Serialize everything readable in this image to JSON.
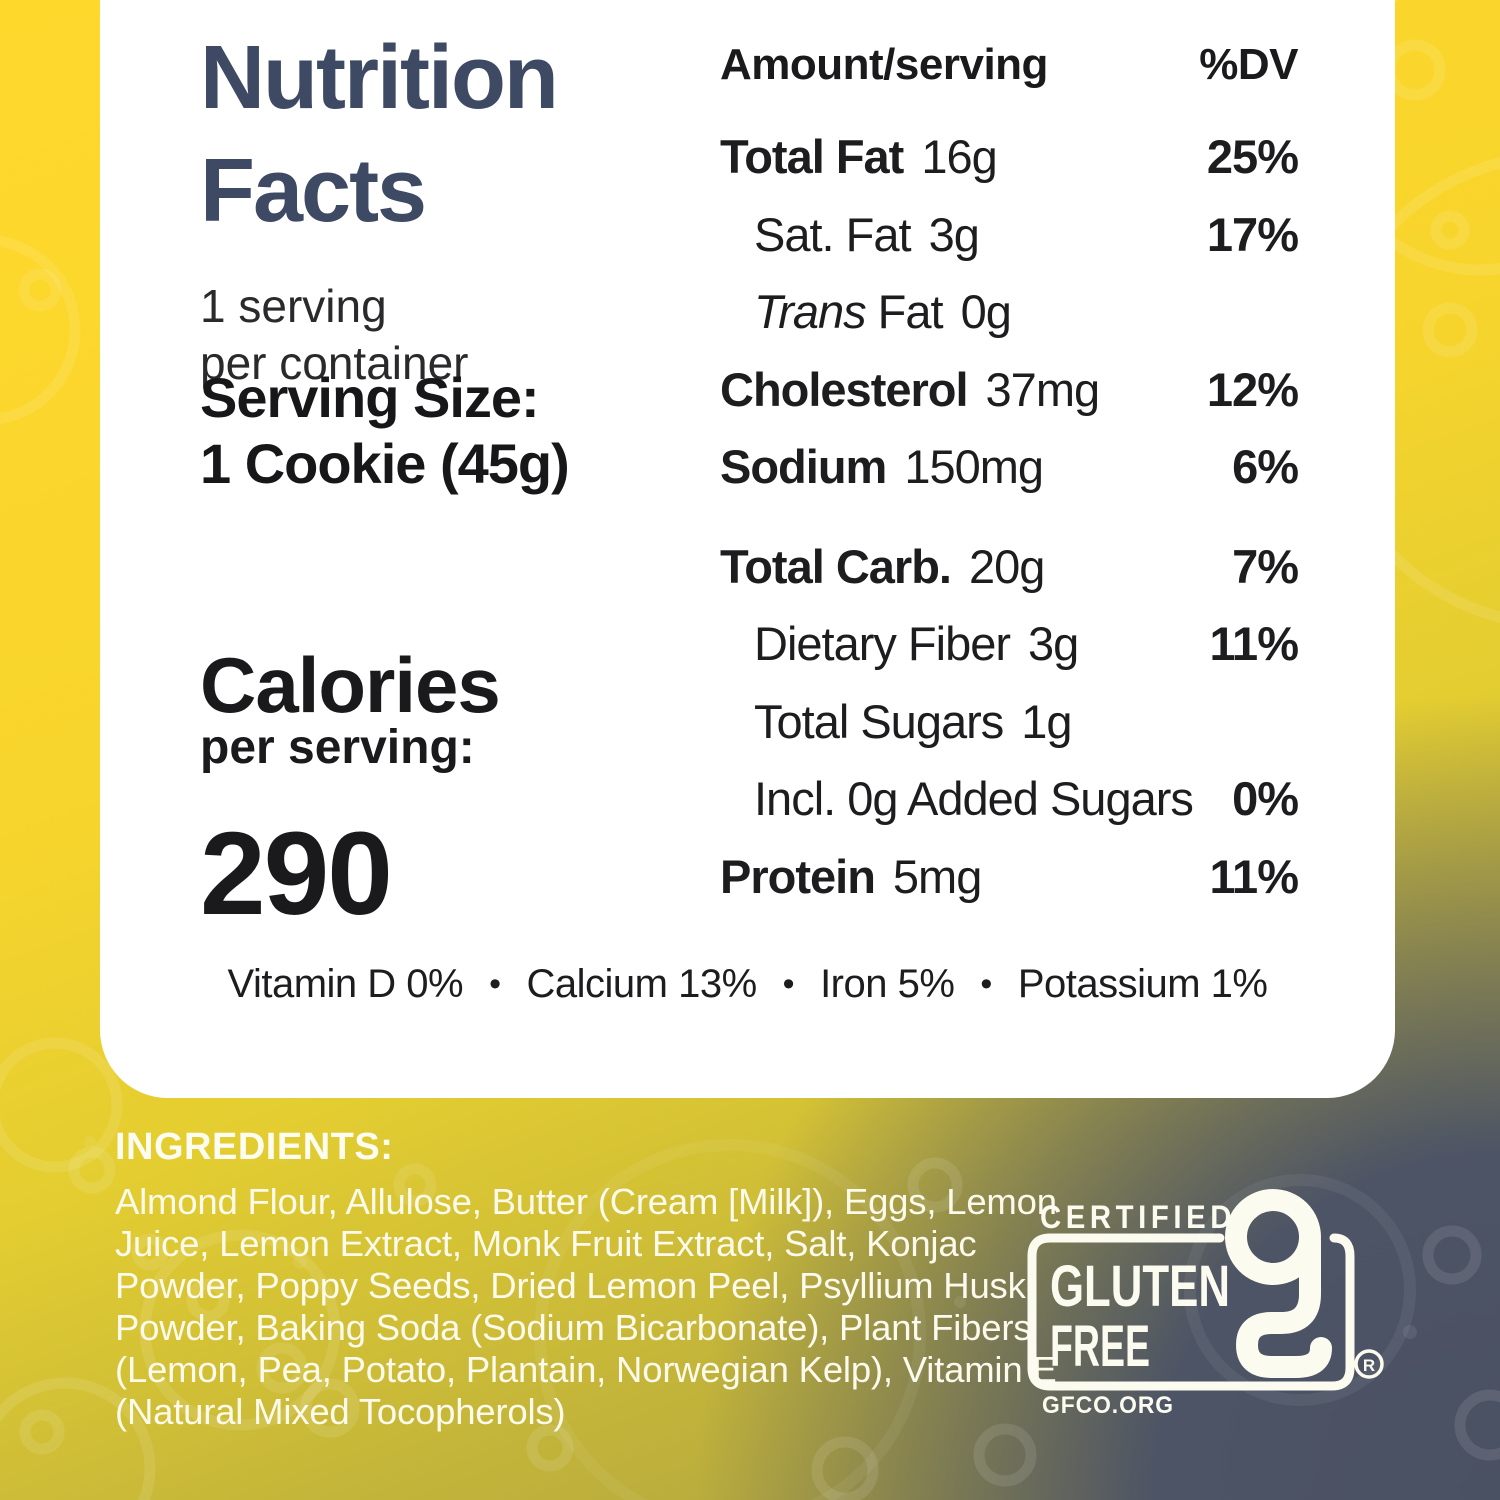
{
  "colors": {
    "bg_yellow": "#FFD82C",
    "bg_olive": "#A89C42",
    "bg_slate": "#4C5364",
    "card_bg": "#FFFFFF",
    "title_blue": "#3E4A63",
    "dark_text": "#1A1A1C",
    "light_text": "#FBFAEC"
  },
  "nutrition_panel": {
    "title_line1": "Nutrition",
    "title_line2": "Facts",
    "servings_line1": "1 serving",
    "servings_line2": "per container",
    "serving_size_line1": "Serving Size:",
    "serving_size_line2": "1 Cookie (45g)",
    "calories_label": "Calories",
    "calories_sublabel": "per serving:",
    "calories_value": "290",
    "table_header": {
      "amount": "Amount/serving",
      "dv": "%DV"
    },
    "rows": [
      {
        "label": "Total Fat",
        "amount": "16g",
        "dv": "25%",
        "bold": true,
        "indent": false,
        "gap_before": false,
        "italic_label": false
      },
      {
        "label": "Sat. Fat",
        "amount": "3g",
        "dv": "17%",
        "bold": false,
        "indent": true,
        "gap_before": false,
        "italic_label": false
      },
      {
        "label": "Trans",
        "label2": "Fat",
        "amount": "0g",
        "dv": "",
        "bold": false,
        "indent": true,
        "gap_before": false,
        "italic_label": true
      },
      {
        "label": "Cholesterol",
        "amount": "37mg",
        "dv": "12%",
        "bold": true,
        "indent": false,
        "gap_before": false,
        "italic_label": false
      },
      {
        "label": "Sodium",
        "amount": "150mg",
        "dv": "6%",
        "bold": true,
        "indent": false,
        "gap_before": false,
        "italic_label": false
      },
      {
        "label": "Total Carb.",
        "amount": "20g",
        "dv": "7%",
        "bold": true,
        "indent": false,
        "gap_before": true,
        "italic_label": false
      },
      {
        "label": "Dietary Fiber",
        "amount": "3g",
        "dv": "11%",
        "bold": false,
        "indent": true,
        "gap_before": false,
        "italic_label": false
      },
      {
        "label": "Total Sugars",
        "amount": "1g",
        "dv": "",
        "bold": false,
        "indent": true,
        "gap_before": false,
        "italic_label": false
      },
      {
        "label": "Incl. 0g Added Sugars",
        "amount": "",
        "dv": "0%",
        "bold": false,
        "indent": true,
        "gap_before": false,
        "italic_label": false
      },
      {
        "label": "Protein",
        "amount": "5mg",
        "dv": "11%",
        "bold": true,
        "indent": false,
        "gap_before": false,
        "italic_label": false
      }
    ],
    "micronutrients": [
      "Vitamin D 0%",
      "Calcium 13%",
      "Iron 5%",
      "Potassium 1%"
    ],
    "bullet": "•"
  },
  "ingredients": {
    "heading": "INGREDIENTS:",
    "lines": [
      "Almond Flour, Allulose, Butter (Cream [Milk]), Eggs, Lemon",
      "Juice, Lemon Extract, Monk Fruit Extract, Salt, Konjac",
      "Powder, Poppy Seeds, Dried Lemon Peel, Psyllium Husk",
      "Powder, Baking Soda (Sodium Bicarbonate), Plant Fibers",
      "(Lemon, Pea, Potato, Plantain, Norwegian Kelp), Vitamin E",
      "(Natural Mixed Tocopherols)"
    ]
  },
  "certification": {
    "line1": "CERTIFIED",
    "word1": "GLUTEN",
    "word2": "FREE",
    "registered": "R",
    "url": "GFCO.ORG"
  }
}
